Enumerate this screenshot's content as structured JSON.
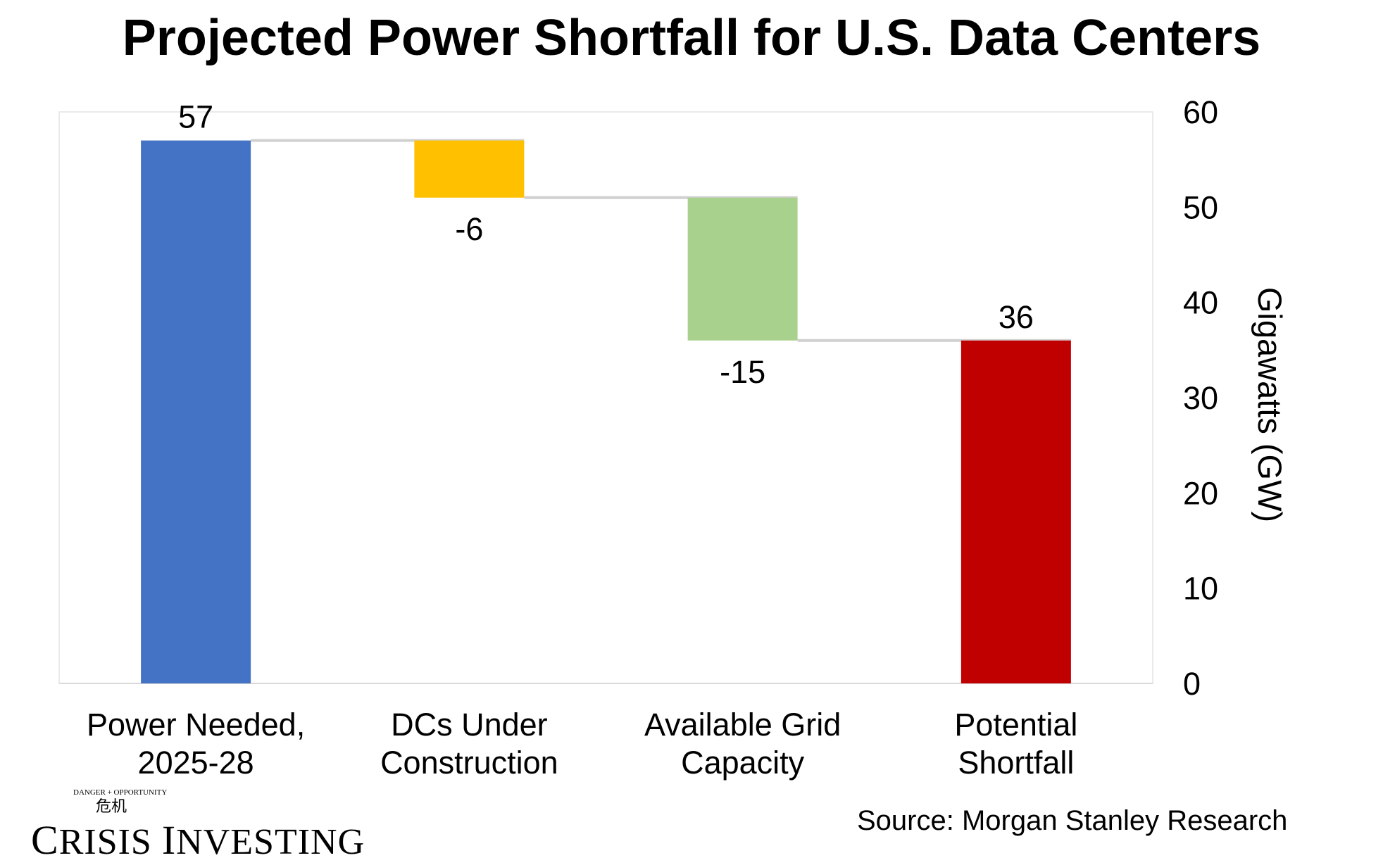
{
  "chart_data": {
    "type": "bar",
    "subtype": "waterfall",
    "title": "Projected Power Shortfall for U.S. Data Centers",
    "categories": [
      [
        "Power Needed,",
        "2025-28"
      ],
      [
        "DCs Under",
        "Construction"
      ],
      [
        "Available Grid",
        "Capacity"
      ],
      [
        "Potential",
        "Shortfall"
      ]
    ],
    "values": [
      57,
      -6,
      -15,
      36
    ],
    "bar_kinds": [
      "total",
      "delta",
      "delta",
      "total"
    ],
    "data_labels": [
      "57",
      "-6",
      "-15",
      "36"
    ],
    "colors": [
      "#4472C4",
      "#FFC000",
      "#A9D18E",
      "#C00000"
    ],
    "ylabel": "Gigawatts (GW)",
    "ylim": [
      0,
      60
    ],
    "yticks": [
      "0",
      "10",
      "20",
      "30",
      "40",
      "50",
      "60"
    ],
    "y_axis_position": "right",
    "grid": false,
    "legend": "none"
  },
  "source": "Source: Morgan Stanley Research",
  "logo": {
    "name": "Crisis Investing",
    "tagline": "Danger + Opportunity"
  }
}
